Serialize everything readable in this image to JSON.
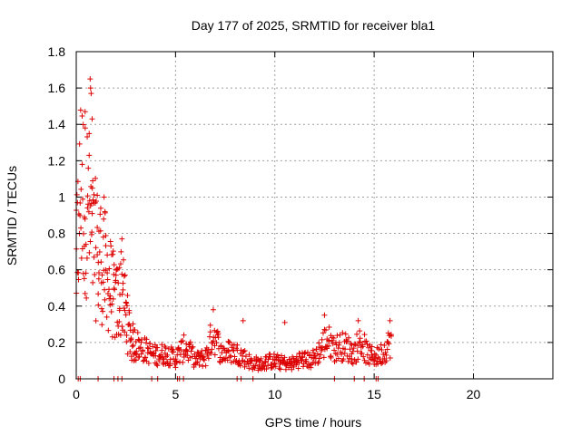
{
  "chart_data": {
    "type": "scatter",
    "title": "Day 177 of 2025, SRMTID for receiver bla1",
    "xlabel": "GPS time / hours",
    "ylabel": "SRMTID / TECUs",
    "xlim": [
      0,
      24
    ],
    "ylim": [
      0,
      1.8
    ],
    "x_ticks": [
      0,
      5,
      10,
      15,
      20
    ],
    "x_tick_labels": [
      "0",
      "5",
      "10",
      "15",
      "20"
    ],
    "y_ticks": [
      0,
      0.2,
      0.4,
      0.6,
      0.8,
      1.0,
      1.2,
      1.4,
      1.6,
      1.8
    ],
    "y_tick_labels": [
      "0",
      "0.2",
      "0.4",
      "0.6",
      "0.8",
      "1",
      "1.2",
      "1.4",
      "1.6",
      "1.8"
    ],
    "grid": true,
    "marker": "+",
    "color": "#dd0000",
    "series": [
      {
        "name": "SRMTID",
        "profile": [
          [
            0.0,
            0.6
          ],
          [
            0.2,
            1.05
          ],
          [
            0.4,
            1.0
          ],
          [
            0.6,
            0.95
          ],
          [
            0.8,
            0.75
          ],
          [
            1.0,
            0.7
          ],
          [
            1.3,
            0.65
          ],
          [
            1.6,
            0.55
          ],
          [
            2.0,
            0.4
          ],
          [
            2.3,
            0.5
          ],
          [
            2.5,
            0.35
          ],
          [
            2.8,
            0.2
          ],
          [
            3.2,
            0.18
          ],
          [
            3.6,
            0.15
          ],
          [
            4.0,
            0.13
          ],
          [
            4.5,
            0.14
          ],
          [
            5.0,
            0.11
          ],
          [
            5.5,
            0.18
          ],
          [
            6.0,
            0.1
          ],
          [
            6.5,
            0.12
          ],
          [
            6.9,
            0.26
          ],
          [
            7.3,
            0.14
          ],
          [
            7.8,
            0.15
          ],
          [
            8.3,
            0.13
          ],
          [
            8.8,
            0.09
          ],
          [
            9.3,
            0.08
          ],
          [
            9.8,
            0.1
          ],
          [
            10.3,
            0.09
          ],
          [
            10.8,
            0.08
          ],
          [
            11.3,
            0.11
          ],
          [
            11.8,
            0.1
          ],
          [
            12.3,
            0.16
          ],
          [
            12.6,
            0.22
          ],
          [
            13.0,
            0.17
          ],
          [
            13.5,
            0.18
          ],
          [
            14.0,
            0.14
          ],
          [
            14.3,
            0.21
          ],
          [
            14.7,
            0.13
          ],
          [
            15.2,
            0.12
          ],
          [
            15.6,
            0.17
          ],
          [
            15.9,
            0.22
          ]
        ],
        "peaks": [
          {
            "x": 0.45,
            "y": 1.38
          },
          {
            "x": 0.7,
            "y": 1.65
          },
          {
            "x": 0.72,
            "y": 1.6
          },
          {
            "x": 0.75,
            "y": 1.57
          },
          {
            "x": 0.8,
            "y": 1.43
          },
          {
            "x": 0.65,
            "y": 1.23
          },
          {
            "x": 0.3,
            "y": 1.18
          },
          {
            "x": 1.4,
            "y": 1.0
          },
          {
            "x": 2.3,
            "y": 0.77
          },
          {
            "x": 6.9,
            "y": 0.38
          },
          {
            "x": 8.4,
            "y": 0.32
          },
          {
            "x": 10.5,
            "y": 0.31
          },
          {
            "x": 12.5,
            "y": 0.35
          },
          {
            "x": 14.2,
            "y": 0.32
          },
          {
            "x": 15.8,
            "y": 0.32
          }
        ],
        "zeros": [
          0.1,
          0.2,
          1.1,
          1.9,
          2.1,
          2.3,
          3.8,
          4.1,
          5.1,
          5.2,
          5.4,
          8.1,
          8.3,
          8.9,
          13.0,
          14.0,
          14.5,
          15.1,
          15.2
        ]
      }
    ]
  }
}
